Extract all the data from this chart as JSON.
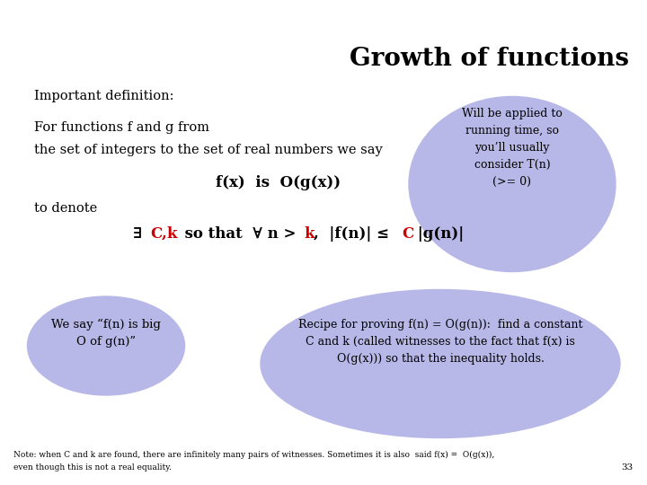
{
  "title": "Growth of functions",
  "bg_color": "#ffffff",
  "ellipse_color": "#b8b8e8",
  "text_color": "#000000",
  "red_color": "#cc0000",
  "important_def": "Important definition:",
  "for_functions_line1": "For functions f and g from",
  "for_functions_line2": "the set of integers to the set of real numbers we say",
  "fxOgx": "f(x)  is  O(g(x))",
  "to_denote": "to denote",
  "bubble1_lines": [
    "Will be applied to",
    "running time, so",
    "you’ll usually",
    "consider T(n)",
    "(>= 0)"
  ],
  "bubble2_lines": [
    "We say “f(n) is big",
    "O of g(n)”"
  ],
  "bubble3_lines": [
    "Recipe for proving f(n) = O(g(n)):  find a constant",
    "C and k (called witnesses to the fact that f(x) is",
    "O(g(x))) so that the inequality holds."
  ],
  "note_line1": "Note: when C and k are found, there are infinitely many pairs of witnesses. Sometimes it is also  said f(x) =  O(g(x)),",
  "note_line2": "even though this is not a real equality.",
  "note_page": "33",
  "title_fontsize": 20,
  "body_fontsize": 10.5,
  "formula_fontsize": 12,
  "note_fontsize": 6.5
}
